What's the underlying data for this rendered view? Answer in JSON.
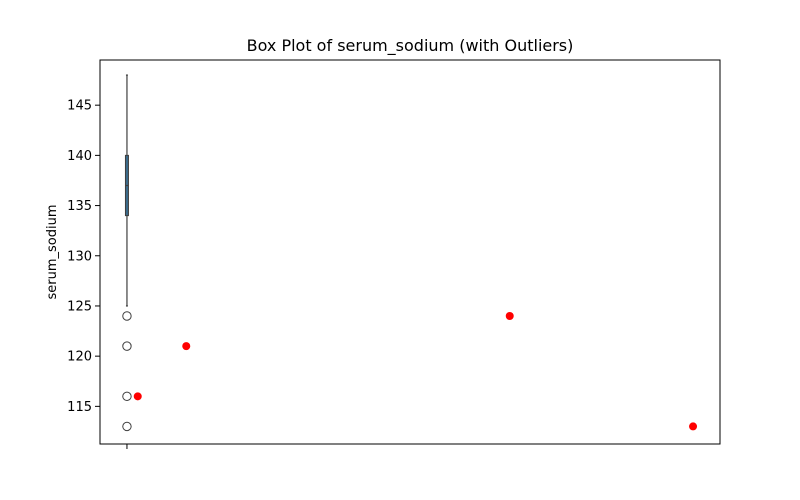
{
  "chart_data": {
    "type": "box",
    "title": "Box Plot of serum_sodium (with Outliers)",
    "xlabel": "",
    "ylabel": "serum_sodium",
    "ylim": [
      111.25,
      149.5
    ],
    "yticks": [
      115,
      120,
      125,
      130,
      135,
      140,
      145
    ],
    "grid": false,
    "box": {
      "whisker_low": 125,
      "q1": 134,
      "median": 137,
      "q3": 140,
      "whisker_high": 148,
      "box_color": "#3b6a8a",
      "fliers": [
        124,
        121,
        116,
        113
      ]
    },
    "highlighted_points": {
      "color": "#ff0000",
      "points": [
        {
          "x": 0.02,
          "y": 116
        },
        {
          "x": 0.11,
          "y": 121
        },
        {
          "x": 0.71,
          "y": 124
        },
        {
          "x": 1.05,
          "y": 113
        }
      ]
    },
    "xlim": [
      -0.05,
      1.1
    ]
  }
}
